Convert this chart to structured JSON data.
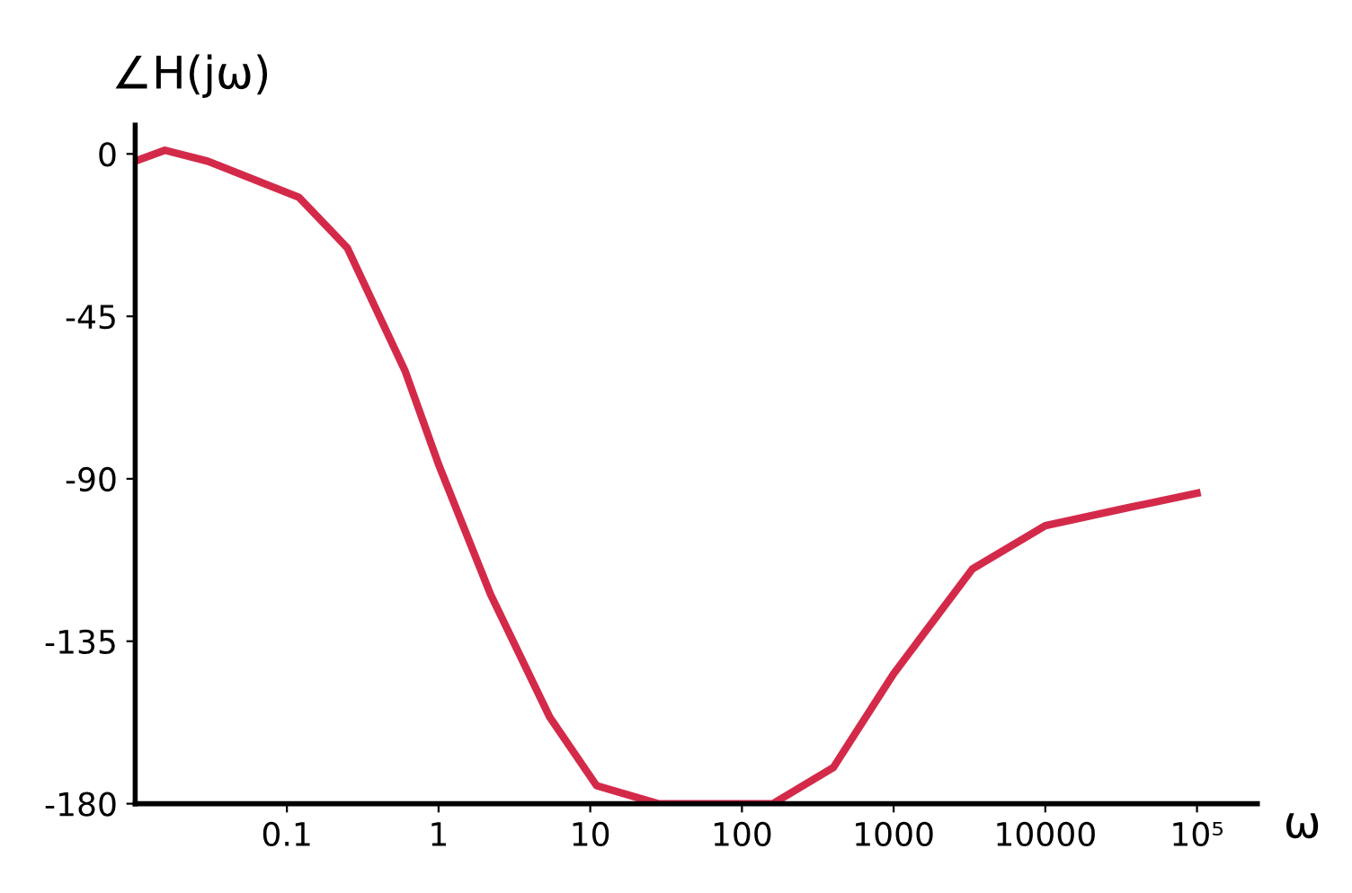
{
  "chart_data": {
    "type": "line",
    "xlabel": "ω",
    "ylabel": "∠H(jω)",
    "log": "x",
    "x": [
      0.01,
      0.0157,
      0.03,
      0.12,
      0.25,
      0.6,
      1,
      2.2,
      5.4,
      11,
      28,
      160,
      400,
      1000,
      3300,
      10000,
      35000,
      100000
    ],
    "series": [
      {
        "color": "#d42a4a",
        "values": [
          -2,
          1,
          -2,
          -12,
          -26,
          -60,
          -86,
          -122,
          -156,
          -175,
          -180,
          -180,
          -170,
          -144,
          -115,
          -103,
          -98,
          -94
        ]
      }
    ],
    "xlim": [
      0.01,
      250000
    ],
    "ylim": [
      -180,
      8
    ],
    "xticks": [
      0.1,
      1,
      10,
      100,
      1000,
      10000,
      {
        "value": 100000,
        "label": "10⁵"
      }
    ],
    "yticks": [
      0,
      -45,
      -90,
      -135,
      -180
    ],
    "grid": false,
    "legend": false,
    "marker": "none",
    "line_style": "solid"
  }
}
